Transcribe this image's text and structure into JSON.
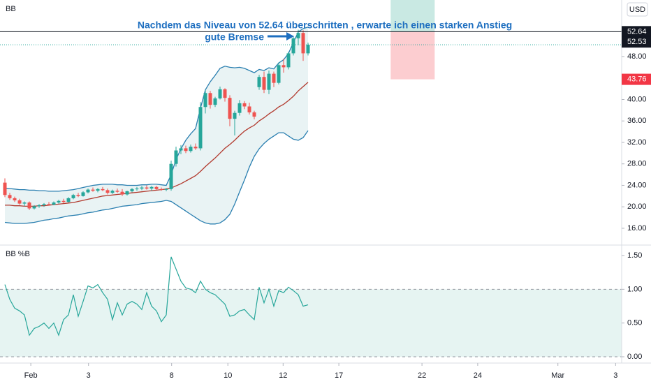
{
  "chart_data": [
    {
      "type": "candlestick",
      "title": "BB",
      "currency": "USD",
      "xlim": [
        -1,
        126.14
      ],
      "xticks": [
        {
          "value": 5.3,
          "label": "Feb"
        },
        {
          "value": 17.1,
          "label": "3"
        },
        {
          "value": 34.1,
          "label": "8"
        },
        {
          "value": 45.6,
          "label": "10"
        },
        {
          "value": 56.9,
          "label": "12"
        },
        {
          "value": 68.3,
          "label": "17"
        },
        {
          "value": 85.3,
          "label": "22"
        },
        {
          "value": 96.7,
          "label": "24"
        },
        {
          "value": 113.1,
          "label": "Mar"
        },
        {
          "value": 124.9,
          "label": "3"
        }
      ],
      "ylim": [
        13.0,
        58.54
      ],
      "yticks": [
        {
          "value": 16,
          "label": "16.00"
        },
        {
          "value": 20,
          "label": "20.00"
        },
        {
          "value": 24,
          "label": "24.00"
        },
        {
          "value": 28,
          "label": "28.00"
        },
        {
          "value": 32,
          "label": "32.00"
        },
        {
          "value": 36,
          "label": "36.00"
        },
        {
          "value": 40,
          "label": "40.00"
        },
        {
          "value": 48,
          "label": "48.00"
        }
      ],
      "open": [
        24.5,
        22.2,
        21.6,
        21.2,
        20.6,
        20.8,
        19.7,
        20.1,
        20.3,
        20.5,
        20.4,
        20.8,
        21.1,
        20.9,
        21.6,
        22.2,
        22.0,
        22.7,
        23.2,
        23.0,
        23.3,
        23.1,
        22.6,
        23.0,
        22.8,
        22.3,
        22.9,
        23.3,
        23.4,
        23.6,
        23.4,
        23.7,
        23.3,
        23.2,
        23.3,
        28.0,
        30.5,
        30.9,
        30.4,
        31.2,
        30.9,
        38.6,
        41.2,
        39.0,
        40.2,
        41.9,
        40.3,
        36.4,
        37.5,
        39.3,
        38.7,
        37.6,
        42.3,
        44.2,
        41.8,
        44.8,
        43.1,
        46.4,
        46.0,
        48.6,
        51.4,
        52.4,
        48.6
      ],
      "high": [
        25.3,
        22.6,
        21.9,
        21.5,
        21.0,
        21.0,
        20.3,
        20.5,
        20.7,
        20.9,
        21.0,
        21.3,
        21.5,
        21.8,
        22.4,
        22.6,
        22.9,
        23.4,
        23.6,
        23.5,
        23.7,
        23.4,
        23.2,
        23.4,
        23.3,
        23.0,
        23.5,
        23.7,
        23.9,
        24.0,
        23.9,
        23.9,
        23.6,
        23.5,
        28.6,
        31.2,
        31.5,
        31.4,
        31.6,
        31.8,
        39.5,
        41.8,
        41.6,
        40.5,
        42.4,
        42.1,
        40.8,
        37.9,
        39.9,
        39.7,
        39.4,
        37.9,
        44.6,
        45.2,
        45.4,
        45.2,
        46.9,
        47.6,
        48.9,
        51.8,
        53.0,
        52.9,
        50.6
      ],
      "low": [
        21.8,
        21.3,
        20.9,
        20.4,
        20.1,
        19.4,
        19.5,
        19.8,
        20.0,
        20.2,
        20.3,
        20.6,
        20.7,
        20.8,
        21.4,
        21.8,
        21.9,
        22.5,
        22.8,
        22.7,
        22.9,
        22.3,
        22.4,
        22.6,
        22.0,
        22.1,
        22.7,
        23.0,
        23.1,
        23.2,
        23.0,
        23.2,
        23.0,
        22.9,
        23.0,
        27.5,
        29.8,
        30.0,
        30.1,
        30.6,
        30.5,
        37.4,
        38.3,
        38.6,
        40.0,
        39.6,
        35.0,
        33.3,
        37.0,
        38.2,
        37.2,
        36.3,
        41.8,
        41.2,
        41.0,
        42.3,
        42.8,
        45.0,
        45.6,
        48.2,
        50.1,
        47.2,
        48.2
      ],
      "close": [
        22.2,
        21.6,
        21.2,
        20.6,
        20.8,
        19.7,
        20.1,
        20.3,
        20.5,
        20.4,
        20.8,
        21.1,
        20.9,
        21.6,
        22.2,
        22.0,
        22.7,
        23.2,
        23.0,
        23.3,
        23.1,
        22.6,
        23.0,
        22.8,
        22.3,
        22.9,
        23.3,
        23.4,
        23.6,
        23.4,
        23.7,
        23.3,
        23.2,
        23.3,
        28.0,
        30.5,
        30.9,
        30.4,
        31.2,
        30.9,
        38.6,
        41.2,
        39.0,
        40.2,
        41.9,
        40.3,
        36.4,
        37.5,
        39.3,
        38.7,
        37.6,
        36.8,
        44.2,
        41.8,
        44.8,
        43.1,
        46.4,
        46.0,
        48.6,
        51.4,
        52.4,
        48.6,
        50.2
      ],
      "up_color": "#26a69a",
      "down_color": "#ef5350",
      "bands": {
        "upper_color": "#2a7fb0",
        "basis_color": "#b23a2e",
        "fill": "#e9f3f4",
        "upper": [
          23.5,
          23.4,
          23.3,
          23.2,
          23.2,
          23.1,
          23.1,
          23.0,
          23.0,
          22.9,
          22.9,
          22.9,
          23.0,
          23.1,
          23.2,
          23.4,
          23.6,
          23.8,
          24.0,
          24.1,
          24.2,
          24.2,
          24.2,
          24.1,
          24.1,
          24.0,
          24.0,
          24.0,
          24.1,
          24.1,
          24.2,
          24.2,
          24.1,
          24.0,
          26.0,
          28.8,
          30.8,
          32.4,
          33.6,
          34.6,
          38.4,
          41.8,
          43.3,
          44.5,
          45.8,
          46.2,
          46.0,
          45.9,
          46.0,
          45.8,
          45.4,
          45.0,
          45.6,
          45.4,
          45.9,
          45.7,
          46.8,
          47.4,
          48.6,
          50.6,
          52.6,
          53.2,
          53.5
        ],
        "basis": [
          20.3,
          20.3,
          20.2,
          20.2,
          20.1,
          20.1,
          20.1,
          20.2,
          20.2,
          20.3,
          20.4,
          20.5,
          20.6,
          20.7,
          20.8,
          21.0,
          21.2,
          21.4,
          21.6,
          21.8,
          22.0,
          22.1,
          22.2,
          22.3,
          22.4,
          22.5,
          22.6,
          22.7,
          22.8,
          22.9,
          23.0,
          23.1,
          23.2,
          23.3,
          23.5,
          23.9,
          24.3,
          24.8,
          25.3,
          25.8,
          26.6,
          27.5,
          28.3,
          29.1,
          30.0,
          30.9,
          31.6,
          32.4,
          33.3,
          34.1,
          34.7,
          35.2,
          36.0,
          36.6,
          37.3,
          37.9,
          38.6,
          39.1,
          39.8,
          40.6,
          41.6,
          42.4,
          43.2
        ],
        "lower": [
          17.1,
          17.0,
          16.9,
          16.9,
          16.9,
          17.0,
          17.1,
          17.3,
          17.5,
          17.6,
          17.8,
          17.9,
          18.1,
          18.3,
          18.4,
          18.5,
          18.7,
          18.9,
          19.0,
          19.2,
          19.4,
          19.5,
          19.7,
          19.9,
          20.1,
          20.2,
          20.3,
          20.4,
          20.6,
          20.7,
          20.8,
          20.9,
          21.0,
          21.2,
          21.0,
          20.4,
          19.8,
          19.2,
          18.6,
          18.0,
          17.4,
          17.0,
          16.8,
          16.8,
          17.0,
          17.6,
          18.6,
          20.5,
          22.8,
          25.0,
          27.4,
          29.4,
          30.8,
          31.8,
          32.6,
          33.2,
          33.8,
          33.8,
          33.2,
          32.6,
          32.4,
          32.9,
          34.2
        ]
      },
      "price_lines": [
        52.64,
        52.53
      ],
      "position": {
        "x": [
          78.9,
          87.9
        ],
        "target": 58.6,
        "entry": 52.64,
        "stop": 43.76
      },
      "annotations": [
        "Nachdem das Niveau von 52.64 überschritten , erwarte ich einen starken Anstieg",
        "gute Bremse"
      ]
    },
    {
      "type": "line",
      "title": "BB %B",
      "color": "#26a69a",
      "band": [
        0,
        1
      ],
      "band_fill": "#e6f4f2",
      "ylim": [
        -0.093,
        1.645
      ],
      "yticks": [
        {
          "value": 1.5,
          "label": "1.50"
        },
        {
          "value": 1,
          "label": "1.00"
        },
        {
          "value": 0.5,
          "label": "0.50"
        },
        {
          "value": 0,
          "label": "0.00"
        }
      ],
      "values": [
        1.07,
        0.85,
        0.72,
        0.68,
        0.62,
        0.32,
        0.42,
        0.45,
        0.5,
        0.42,
        0.5,
        0.32,
        0.55,
        0.62,
        0.92,
        0.6,
        0.82,
        1.05,
        1.02,
        1.07,
        0.95,
        0.85,
        0.55,
        0.8,
        0.62,
        0.78,
        0.82,
        0.78,
        0.7,
        0.95,
        0.75,
        0.68,
        0.52,
        0.62,
        1.48,
        1.3,
        1.12,
        1.02,
        1.0,
        0.95,
        1.12,
        1.0,
        0.95,
        0.92,
        0.85,
        0.78,
        0.6,
        0.62,
        0.68,
        0.7,
        0.62,
        0.55,
        1.03,
        0.8,
        1.0,
        0.75,
        0.98,
        0.95,
        1.03,
        0.98,
        0.92,
        0.75,
        0.77
      ]
    }
  ]
}
